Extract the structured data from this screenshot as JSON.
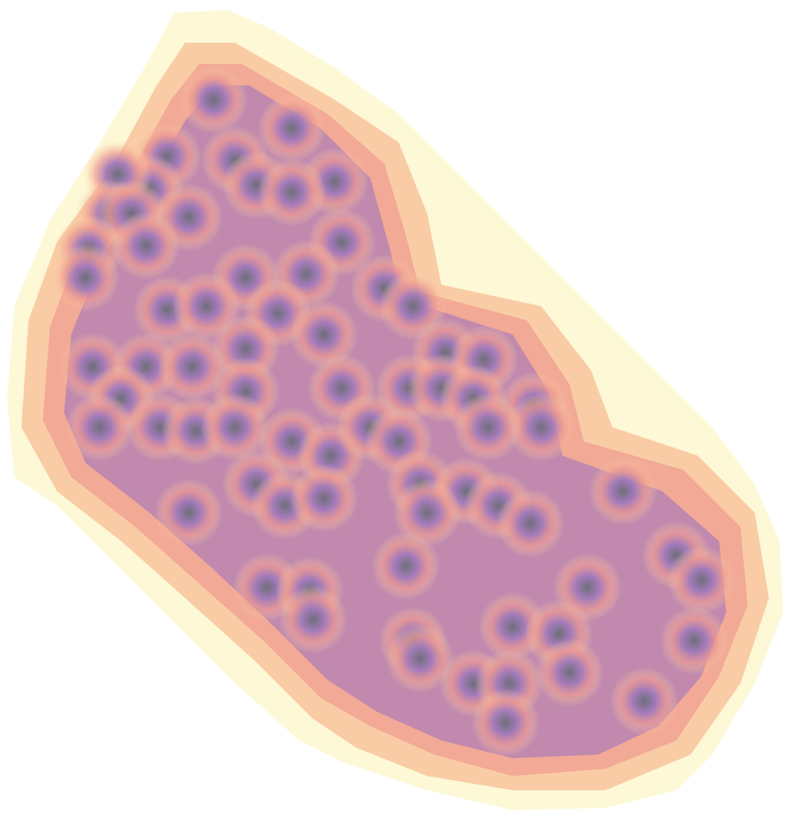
{
  "map": {
    "type": "interpolated-density-raster",
    "color_ramp": {
      "low": "#fdf8d6",
      "mid_low": "#fbc79a",
      "mid": "#f29a8e",
      "mid_high": "#a77bbd",
      "high": "#6e6e7a"
    },
    "background": "#ffffff",
    "legend": null,
    "labels": []
  }
}
